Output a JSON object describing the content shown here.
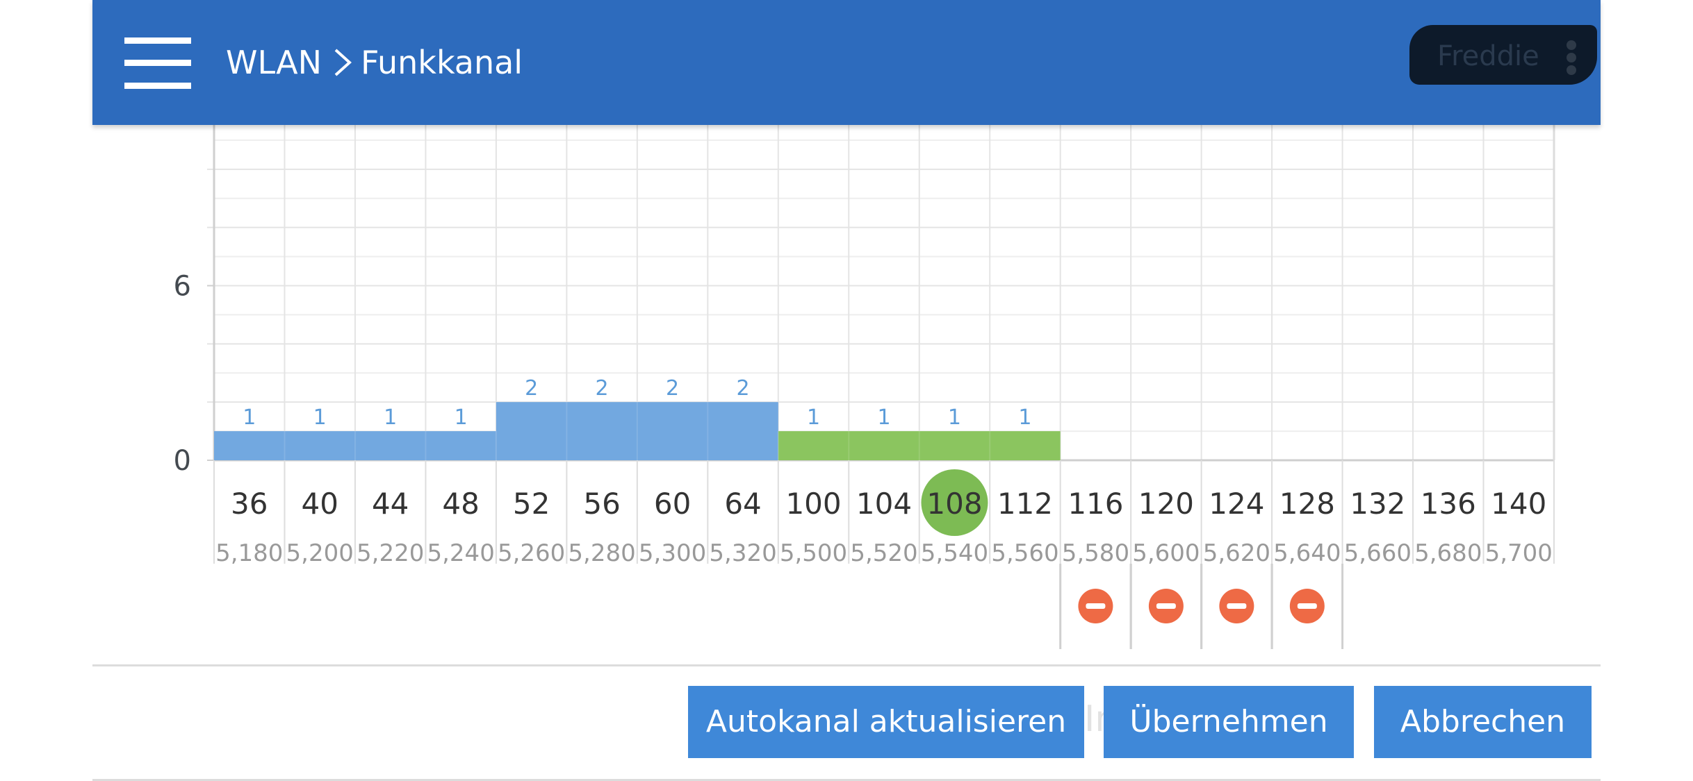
{
  "header": {
    "section": "WLAN",
    "page": "Funkkanal",
    "user_name": "Freddie",
    "menu_icon": "hamburger-icon",
    "separator_icon": "chevron-right-icon",
    "more_icon": "more-vertical-icon"
  },
  "colors": {
    "header_bg": "#2d6bbd",
    "bar_blue": "#72a8e0",
    "bar_green": "#8bc55f",
    "selected_channel": "#7dbb54",
    "blocked_icon": "#ee6a45",
    "button": "#3f88d8"
  },
  "chart_data": {
    "type": "bar",
    "y_ticks": [
      "0",
      "6"
    ],
    "categories": [
      "36",
      "40",
      "44",
      "48",
      "52",
      "56",
      "60",
      "64",
      "100",
      "104",
      "108",
      "112",
      "116",
      "120",
      "124",
      "128",
      "132",
      "136",
      "140"
    ],
    "frequencies": [
      "5,180",
      "5,200",
      "5,220",
      "5,240",
      "5,260",
      "5,280",
      "5,300",
      "5,320",
      "5,500",
      "5,520",
      "5,540",
      "5,560",
      "5,580",
      "5,600",
      "5,620",
      "5,640",
      "5,660",
      "5,680",
      "5,700"
    ],
    "values": [
      1,
      1,
      1,
      1,
      2,
      2,
      2,
      2,
      1,
      1,
      1,
      1,
      null,
      null,
      null,
      null,
      null,
      null,
      null
    ],
    "groups": [
      {
        "from": 0,
        "to": 3,
        "value": 1,
        "color": "#72a8e0"
      },
      {
        "from": 4,
        "to": 7,
        "value": 2,
        "color": "#72a8e0"
      },
      {
        "from": 8,
        "to": 11,
        "value": 1,
        "color": "#8bc55f"
      }
    ],
    "selected_channel": "108",
    "blocked_channels": [
      "116",
      "120",
      "124",
      "128"
    ],
    "blocked_icon": "minus-circle-icon",
    "ylim": [
      0,
      12
    ],
    "grid": true
  },
  "footer": {
    "ghost_text": "In ... q",
    "buttons": {
      "autochannel": "Autokanal aktualisieren",
      "apply": "Übernehmen",
      "cancel": "Abbrechen"
    }
  }
}
